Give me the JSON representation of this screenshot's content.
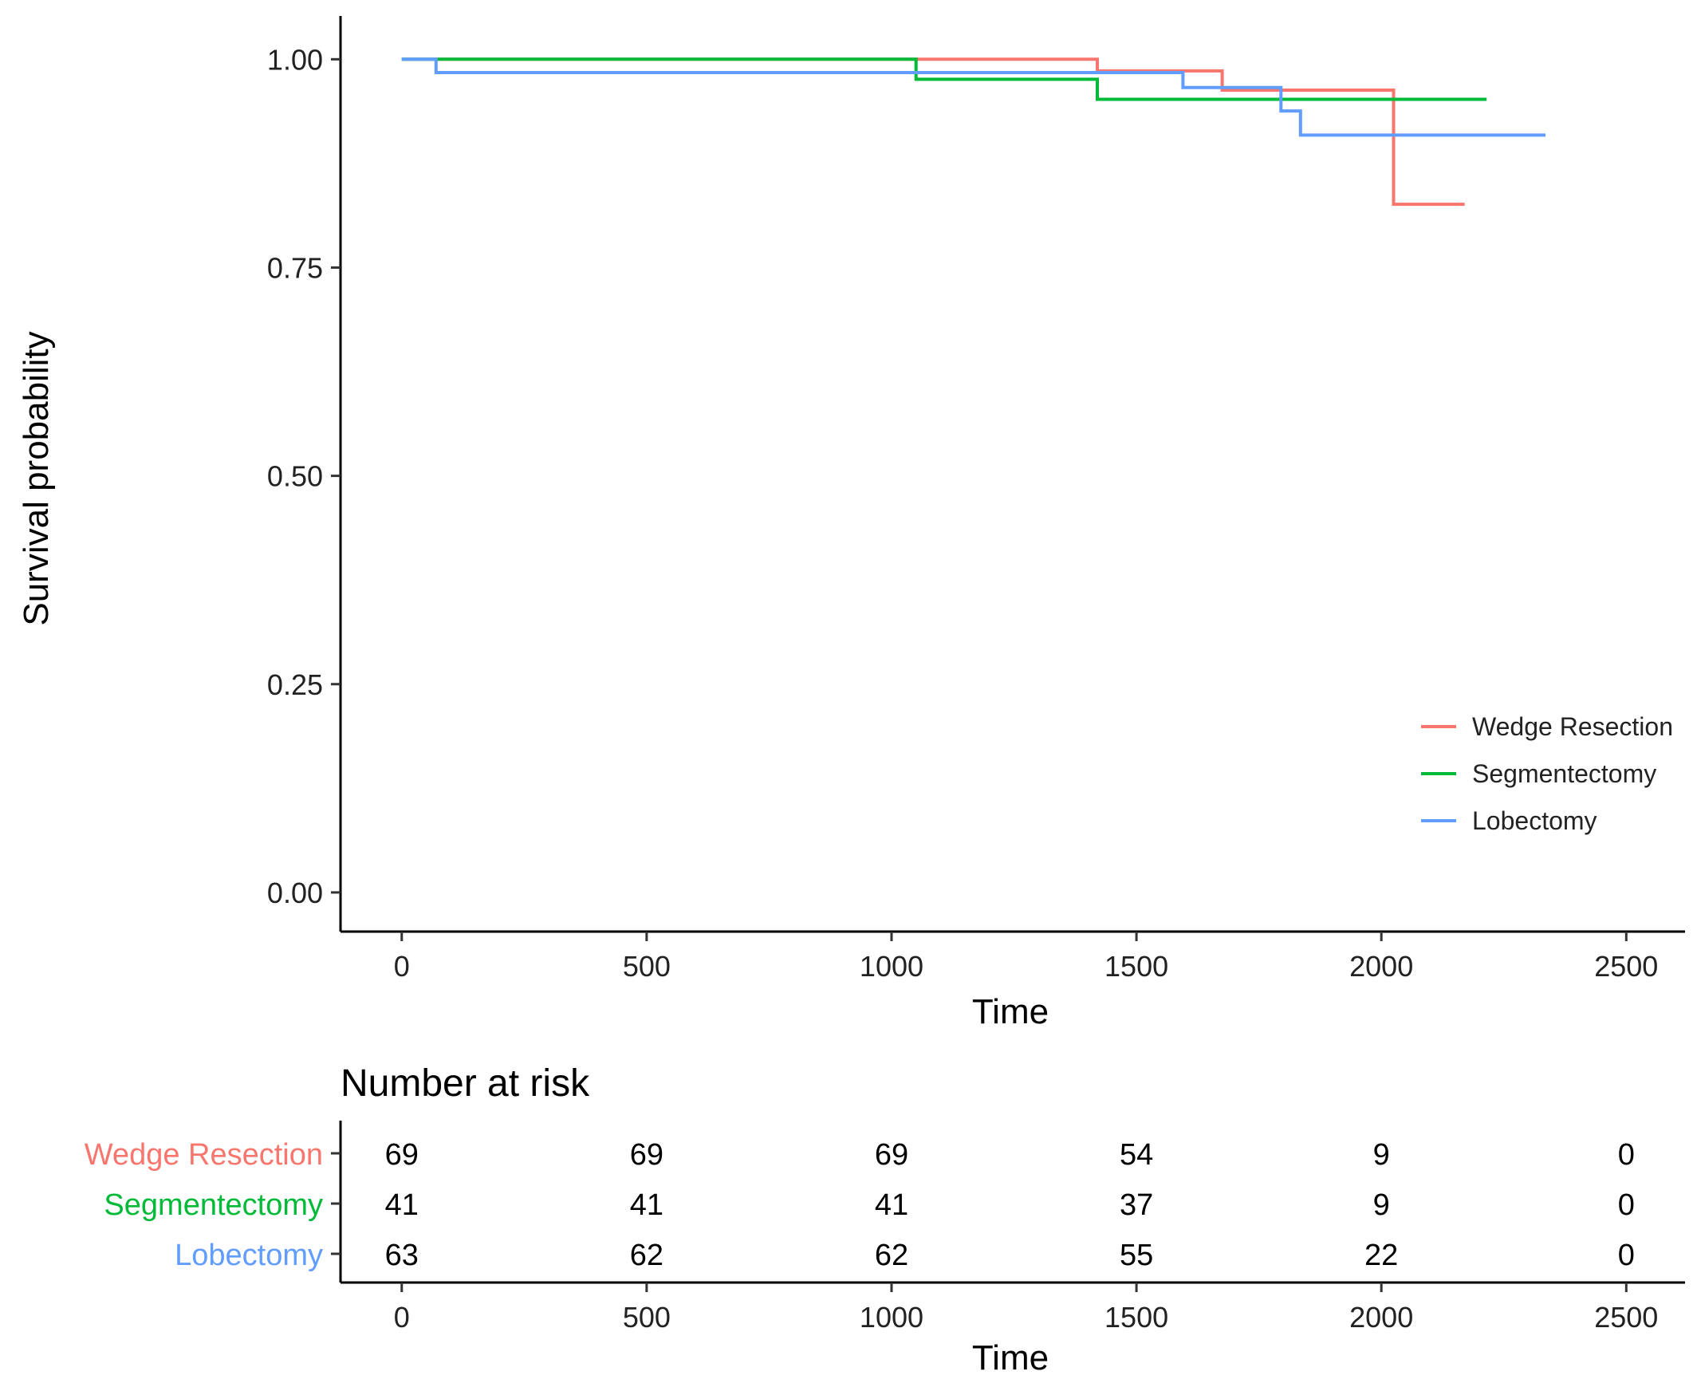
{
  "chart_data": [
    {
      "type": "line",
      "subtype": "kaplan-meier-step",
      "xlabel": "Time",
      "ylabel": "Survival probability",
      "xlim": [
        -125,
        2620
      ],
      "ylim": [
        -0.047,
        1.052
      ],
      "x_ticks": [
        0,
        500,
        1000,
        1500,
        2000,
        2500
      ],
      "x_tick_labels": [
        "0",
        "500",
        "1000",
        "1500",
        "2000",
        "2500"
      ],
      "y_ticks": [
        0,
        0.25,
        0.5,
        0.75,
        1
      ],
      "y_tick_labels": [
        "0.00",
        "0.25",
        "0.50",
        "0.75",
        "1.00"
      ],
      "grid": false,
      "legend_position": "bottom-right",
      "series": [
        {
          "name": "Wedge Resection",
          "color": "#f8766d",
          "points": [
            [
              0,
              1.0
            ],
            [
              1420,
              1.0
            ],
            [
              1420,
              0.986
            ],
            [
              1675,
              0.986
            ],
            [
              1675,
              0.963
            ],
            [
              2025,
              0.963
            ],
            [
              2025,
              0.826
            ],
            [
              2170,
              0.826
            ]
          ]
        },
        {
          "name": "Segmentectomy",
          "color": "#00ba38",
          "points": [
            [
              0,
              1.0
            ],
            [
              1050,
              1.0
            ],
            [
              1050,
              0.976
            ],
            [
              1420,
              0.976
            ],
            [
              1420,
              0.952
            ],
            [
              2215,
              0.952
            ]
          ]
        },
        {
          "name": "Lobectomy",
          "color": "#619cff",
          "points": [
            [
              0,
              1.0
            ],
            [
              70,
              1.0
            ],
            [
              70,
              0.984
            ],
            [
              1595,
              0.984
            ],
            [
              1595,
              0.966
            ],
            [
              1795,
              0.966
            ],
            [
              1795,
              0.938
            ],
            [
              1835,
              0.938
            ],
            [
              1835,
              0.909
            ],
            [
              2335,
              0.909
            ]
          ]
        }
      ]
    },
    {
      "type": "table",
      "title": "Number at risk",
      "xlabel": "Time",
      "columns": [
        0,
        500,
        1000,
        1500,
        2000,
        2500
      ],
      "x_tick_labels": [
        "0",
        "500",
        "1000",
        "1500",
        "2000",
        "2500"
      ],
      "rows": [
        {
          "name": "Wedge Resection",
          "color": "#f8766d",
          "values": [
            "69",
            "69",
            "69",
            "54",
            "9",
            "0"
          ]
        },
        {
          "name": "Segmentectomy",
          "color": "#00ba38",
          "values": [
            "41",
            "41",
            "41",
            "37",
            "9",
            "0"
          ]
        },
        {
          "name": "Lobectomy",
          "color": "#619cff",
          "values": [
            "63",
            "62",
            "62",
            "55",
            "22",
            "0"
          ]
        }
      ]
    }
  ]
}
